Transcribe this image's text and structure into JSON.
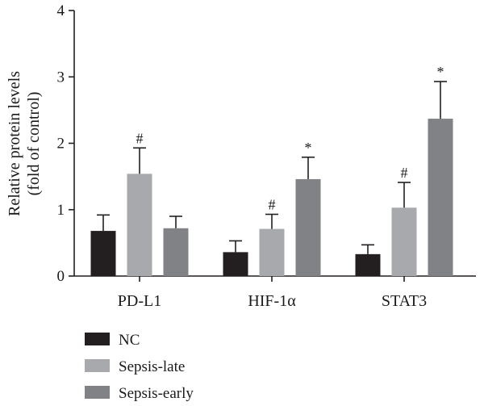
{
  "chart_data": {
    "type": "bar",
    "title": "",
    "ylabel_lines": [
      "Relative protein levels",
      "(fold of control)"
    ],
    "xlabel": "",
    "ylim": [
      0,
      4
    ],
    "yticks": [
      "0",
      "1",
      "2",
      "3",
      "4"
    ],
    "categories": [
      "PD-L1",
      "HIF-1α",
      "STAT3"
    ],
    "series": [
      {
        "name": "NC",
        "color": "#231f20",
        "values": [
          0.68,
          0.36,
          0.33
        ],
        "errors": [
          0.24,
          0.17,
          0.14
        ],
        "marks": [
          "",
          "",
          ""
        ]
      },
      {
        "name": "Sepsis-late",
        "color": "#a7a9ac",
        "values": [
          1.54,
          0.71,
          1.03
        ],
        "errors": [
          0.39,
          0.22,
          0.38
        ],
        "marks": [
          "#",
          "#",
          "#"
        ]
      },
      {
        "name": "Sepsis-early",
        "color": "#808285",
        "values": [
          0.72,
          1.46,
          2.37
        ],
        "errors": [
          0.18,
          0.33,
          0.56
        ],
        "marks": [
          "",
          "*",
          "*"
        ]
      }
    ],
    "legend_position": "bottom-left",
    "grid": false
  }
}
